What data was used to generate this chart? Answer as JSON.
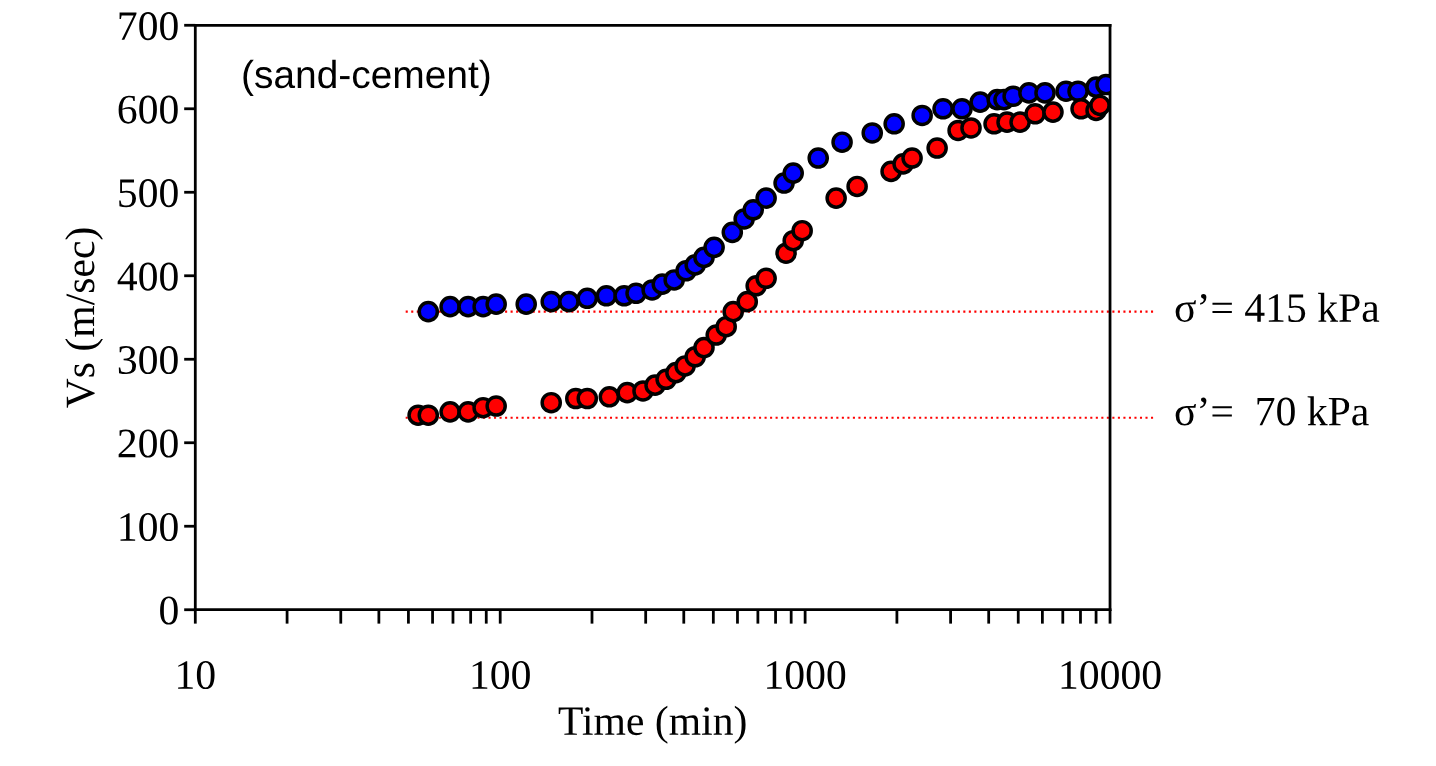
{
  "chart_data": {
    "type": "scatter",
    "xlabel": "Time (min)",
    "ylabel": "Vs (m/sec)",
    "log": "x",
    "marker": "circle",
    "grid": false,
    "legend": false,
    "annotations": [
      "(sand-cement)"
    ],
    "xlim": [
      10,
      10000
    ],
    "xticks": [
      10,
      {
        "value": 20,
        "label": null
      },
      {
        "value": 30,
        "label": null
      },
      {
        "value": 40,
        "label": null
      },
      {
        "value": 50,
        "label": null
      },
      {
        "value": 60,
        "label": null
      },
      {
        "value": 70,
        "label": null
      },
      {
        "value": 80,
        "label": null
      },
      {
        "value": 90,
        "label": null
      },
      100,
      {
        "value": 200,
        "label": null
      },
      {
        "value": 300,
        "label": null
      },
      {
        "value": 400,
        "label": null
      },
      {
        "value": 500,
        "label": null
      },
      {
        "value": 600,
        "label": null
      },
      {
        "value": 700,
        "label": null
      },
      {
        "value": 800,
        "label": null
      },
      {
        "value": 900,
        "label": null
      },
      1000,
      {
        "value": 2000,
        "label": null
      },
      {
        "value": 3000,
        "label": null
      },
      {
        "value": 4000,
        "label": null
      },
      {
        "value": 5000,
        "label": null
      },
      {
        "value": 6000,
        "label": null
      },
      {
        "value": 7000,
        "label": null
      },
      {
        "value": 8000,
        "label": null
      },
      {
        "value": 9000,
        "label": null
      },
      10000
    ],
    "ylim": [
      0,
      700
    ],
    "yticks": [
      0,
      100,
      200,
      300,
      400,
      500,
      600,
      700
    ],
    "series": [
      {
        "name": "σ’= 415 kPa",
        "color": "#0000ff",
        "x": [
          58.1,
          68.5,
          78.5,
          87.9,
          97.0,
          121.7,
          147,
          168,
          193,
          223,
          255,
          279,
          315,
          340,
          372,
          407,
          436,
          466,
          503,
          577,
          631,
          676,
          745,
          853,
          914,
          1104,
          1322,
          1660,
          1959,
          2420,
          2834,
          3270,
          3750,
          4265,
          4490,
          4810,
          5420,
          6120,
          7175,
          7855,
          9000,
          9700
        ],
        "values": [
          357,
          363,
          363,
          363,
          366,
          366,
          369,
          369,
          373,
          376,
          376,
          379,
          383,
          390,
          395,
          406,
          413,
          422,
          434,
          452,
          468,
          479,
          493,
          511,
          523,
          541,
          560,
          571,
          582,
          592,
          600,
          600,
          608,
          611,
          611,
          615,
          619,
          619,
          621,
          621,
          626,
          629
        ]
      },
      {
        "name": "σ’=  70 kPa",
        "color": "#ff0000",
        "x": [
          53.8,
          58.1,
          68.5,
          78.5,
          87.9,
          97.0,
          147,
          177,
          193,
          228,
          261,
          294,
          322,
          350,
          377,
          404,
          436,
          466,
          511,
          551,
          581,
          646,
          691,
          745,
          866,
          914,
          978,
          1264,
          1481,
          1914,
          2096,
          2243,
          2710,
          3175,
          3500,
          4165,
          4595,
          5070,
          5680,
          6500,
          8035,
          9000,
          9270
        ],
        "values": [
          233,
          233,
          237,
          237,
          242,
          244,
          248,
          253,
          253,
          255,
          260,
          262,
          269,
          276,
          284,
          292,
          303,
          314,
          329,
          339,
          357,
          369,
          388,
          397,
          427,
          442,
          454,
          493,
          507,
          525,
          534,
          541,
          553,
          574,
          577,
          582,
          584,
          584,
          594,
          596,
          600,
          598,
          604
        ]
      }
    ],
    "ref_lines": [
      {
        "axis": "y",
        "value": 357,
        "color": "#ff0000",
        "line_style": "dotted"
      },
      {
        "axis": "y",
        "value": 230,
        "color": "#ff0000",
        "line_style": "dotted"
      }
    ]
  }
}
